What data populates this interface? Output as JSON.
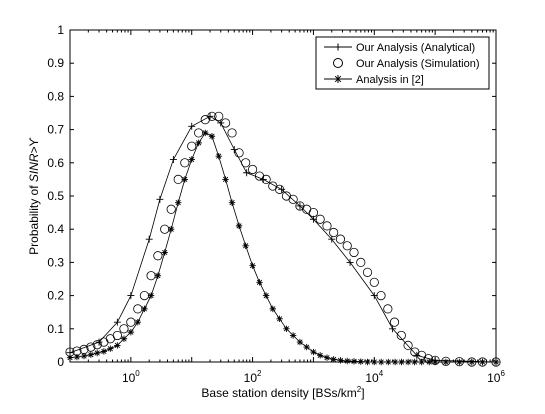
{
  "chart_data": {
    "type": "line",
    "xscale": "log",
    "xlim": [
      0.1,
      1000000
    ],
    "ylim": [
      0,
      1
    ],
    "grid": false,
    "legend_position": "top-right",
    "xlabel": {
      "prefix": "Base station density [BSs/km",
      "sup": "2",
      "suffix": "]"
    },
    "ylabel": {
      "prefix": "Probability of ",
      "italic": "SINR>",
      "symbol": "ϒ"
    },
    "xticks": [
      {
        "value": 1,
        "base": "10",
        "exp": "0"
      },
      {
        "value": 100,
        "base": "10",
        "exp": "2"
      },
      {
        "value": 10000,
        "base": "10",
        "exp": "4"
      },
      {
        "value": 1000000,
        "base": "10",
        "exp": "6"
      }
    ],
    "yticks": [
      {
        "value": 0,
        "label": "0"
      },
      {
        "value": 0.1,
        "label": "0.1"
      },
      {
        "value": 0.2,
        "label": "0.2"
      },
      {
        "value": 0.3,
        "label": "0.3"
      },
      {
        "value": 0.4,
        "label": "0.4"
      },
      {
        "value": 0.5,
        "label": "0.5"
      },
      {
        "value": 0.6,
        "label": "0.6"
      },
      {
        "value": 0.7,
        "label": "0.7"
      },
      {
        "value": 0.8,
        "label": "0.8"
      },
      {
        "value": 0.9,
        "label": "0.9"
      },
      {
        "value": 1,
        "label": "1"
      }
    ],
    "series": [
      {
        "name": "Our Analysis (Analytical)",
        "marker": "plus",
        "line": true,
        "points": [
          [
            0.1,
            0.028
          ],
          [
            0.3,
            0.06
          ],
          [
            0.6,
            0.12
          ],
          [
            1.0,
            0.2
          ],
          [
            2.0,
            0.37
          ],
          [
            3.0,
            0.49
          ],
          [
            5.0,
            0.61
          ],
          [
            10,
            0.71
          ],
          [
            20,
            0.74
          ],
          [
            30,
            0.72
          ],
          [
            50,
            0.64
          ],
          [
            80,
            0.57
          ],
          [
            150,
            0.55
          ],
          [
            300,
            0.52
          ],
          [
            600,
            0.47
          ],
          [
            1000,
            0.43
          ],
          [
            2000,
            0.37
          ],
          [
            4000,
            0.3
          ],
          [
            10000,
            0.2
          ],
          [
            20000,
            0.1
          ],
          [
            50000,
            0.02
          ],
          [
            100000,
            0.005
          ],
          [
            1000000,
            0.0
          ]
        ]
      },
      {
        "name": "Our Analysis (Simulation)",
        "marker": "circle",
        "line": false,
        "points": [
          [
            0.1,
            0.03
          ],
          [
            0.13,
            0.033
          ],
          [
            0.17,
            0.038
          ],
          [
            0.22,
            0.045
          ],
          [
            0.28,
            0.052
          ],
          [
            0.36,
            0.06
          ],
          [
            0.46,
            0.07
          ],
          [
            0.6,
            0.08
          ],
          [
            0.77,
            0.1
          ],
          [
            1.0,
            0.12
          ],
          [
            1.3,
            0.16
          ],
          [
            1.67,
            0.2
          ],
          [
            2.15,
            0.26
          ],
          [
            2.78,
            0.32
          ],
          [
            3.6,
            0.4
          ],
          [
            4.6,
            0.46
          ],
          [
            6.0,
            0.55
          ],
          [
            7.7,
            0.6
          ],
          [
            10,
            0.65
          ],
          [
            13,
            0.69
          ],
          [
            16.7,
            0.73
          ],
          [
            21.5,
            0.74
          ],
          [
            27.8,
            0.74
          ],
          [
            36,
            0.72
          ],
          [
            46,
            0.69
          ],
          [
            60,
            0.63
          ],
          [
            77,
            0.6
          ],
          [
            100,
            0.58
          ],
          [
            130,
            0.56
          ],
          [
            167,
            0.55
          ],
          [
            215,
            0.53
          ],
          [
            278,
            0.52
          ],
          [
            360,
            0.5
          ],
          [
            464,
            0.49
          ],
          [
            600,
            0.47
          ],
          [
            774,
            0.46
          ],
          [
            1000,
            0.45
          ],
          [
            1290,
            0.43
          ],
          [
            1670,
            0.41
          ],
          [
            2150,
            0.39
          ],
          [
            2780,
            0.37
          ],
          [
            3590,
            0.35
          ],
          [
            4640,
            0.33
          ],
          [
            6000,
            0.3
          ],
          [
            7740,
            0.27
          ],
          [
            10000,
            0.24
          ],
          [
            12900,
            0.2
          ],
          [
            16700,
            0.16
          ],
          [
            21500,
            0.12
          ],
          [
            27800,
            0.08
          ],
          [
            35900,
            0.05
          ],
          [
            46400,
            0.03
          ],
          [
            60000,
            0.02
          ],
          [
            77400,
            0.01
          ],
          [
            100000,
            0.005
          ],
          [
            150000,
            0.002
          ],
          [
            250000,
            0.001
          ],
          [
            400000,
            0.0
          ],
          [
            600000,
            0.0
          ],
          [
            1000000,
            0.0
          ]
        ]
      },
      {
        "name": "Analysis in [2]",
        "marker": "star",
        "line": true,
        "points": [
          [
            0.1,
            0.013
          ],
          [
            0.13,
            0.015
          ],
          [
            0.17,
            0.018
          ],
          [
            0.22,
            0.022
          ],
          [
            0.28,
            0.027
          ],
          [
            0.36,
            0.032
          ],
          [
            0.46,
            0.04
          ],
          [
            0.6,
            0.05
          ],
          [
            0.77,
            0.07
          ],
          [
            1.0,
            0.09
          ],
          [
            1.3,
            0.12
          ],
          [
            1.67,
            0.16
          ],
          [
            2.15,
            0.2
          ],
          [
            2.78,
            0.26
          ],
          [
            3.6,
            0.33
          ],
          [
            4.6,
            0.4
          ],
          [
            6.0,
            0.48
          ],
          [
            7.7,
            0.55
          ],
          [
            10,
            0.61
          ],
          [
            13,
            0.66
          ],
          [
            16.7,
            0.69
          ],
          [
            21.5,
            0.68
          ],
          [
            27.8,
            0.62
          ],
          [
            36,
            0.55
          ],
          [
            46,
            0.48
          ],
          [
            60,
            0.41
          ],
          [
            77,
            0.35
          ],
          [
            100,
            0.29
          ],
          [
            130,
            0.24
          ],
          [
            167,
            0.2
          ],
          [
            215,
            0.16
          ],
          [
            278,
            0.13
          ],
          [
            360,
            0.1
          ],
          [
            464,
            0.08
          ],
          [
            600,
            0.06
          ],
          [
            774,
            0.045
          ],
          [
            1000,
            0.03
          ],
          [
            1290,
            0.02
          ],
          [
            1670,
            0.013
          ],
          [
            2150,
            0.008
          ],
          [
            2780,
            0.005
          ],
          [
            3590,
            0.003
          ],
          [
            4640,
            0.002
          ],
          [
            6000,
            0.001
          ],
          [
            7740,
            0.0
          ],
          [
            10000,
            0.0
          ],
          [
            13000,
            0.0
          ],
          [
            17000,
            0.0
          ],
          [
            22000,
            0.0
          ],
          [
            28000,
            0.0
          ],
          [
            36000,
            0.0
          ],
          [
            46000,
            0.0
          ],
          [
            60000,
            0.0
          ],
          [
            80000,
            0.0
          ],
          [
            100000,
            0.0
          ],
          [
            150000,
            0.0
          ],
          [
            250000,
            0.0
          ],
          [
            400000,
            0.0
          ],
          [
            600000,
            0.0
          ],
          [
            1000000,
            0.0
          ]
        ]
      }
    ]
  }
}
